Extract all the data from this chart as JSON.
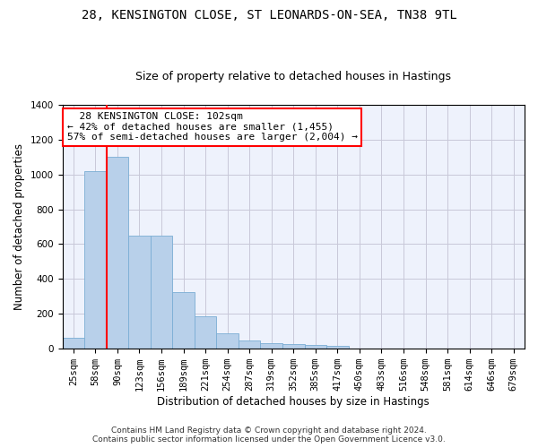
{
  "title_line1": "28, KENSINGTON CLOSE, ST LEONARDS-ON-SEA, TN38 9TL",
  "title_line2": "Size of property relative to detached houses in Hastings",
  "xlabel": "Distribution of detached houses by size in Hastings",
  "ylabel": "Number of detached properties",
  "bar_color": "#b8d0ea",
  "bar_edge_color": "#7aadd4",
  "categories": [
    "25sqm",
    "58sqm",
    "90sqm",
    "123sqm",
    "156sqm",
    "189sqm",
    "221sqm",
    "254sqm",
    "287sqm",
    "319sqm",
    "352sqm",
    "385sqm",
    "417sqm",
    "450sqm",
    "483sqm",
    "516sqm",
    "548sqm",
    "581sqm",
    "614sqm",
    "646sqm",
    "679sqm"
  ],
  "values": [
    62,
    1020,
    1100,
    650,
    650,
    325,
    188,
    88,
    46,
    30,
    26,
    22,
    15,
    0,
    0,
    0,
    0,
    0,
    0,
    0,
    0
  ],
  "ylim": [
    0,
    1400
  ],
  "yticks": [
    0,
    200,
    400,
    600,
    800,
    1000,
    1200,
    1400
  ],
  "annotation_line1": "  28 KENSINGTON CLOSE: 102sqm",
  "annotation_line2": "← 42% of detached houses are smaller (1,455)",
  "annotation_line3": "57% of semi-detached houses are larger (2,004) →",
  "annotation_box_color": "white",
  "annotation_box_edge_color": "red",
  "vline_color": "red",
  "vline_x": 1.5,
  "footer_line1": "Contains HM Land Registry data © Crown copyright and database right 2024.",
  "footer_line2": "Contains public sector information licensed under the Open Government Licence v3.0.",
  "background_color": "#eef2fc",
  "grid_color": "#c8c8d8",
  "title_fontsize": 10,
  "subtitle_fontsize": 9,
  "axis_label_fontsize": 8.5,
  "tick_fontsize": 7.5,
  "annotation_fontsize": 8,
  "footer_fontsize": 6.5
}
